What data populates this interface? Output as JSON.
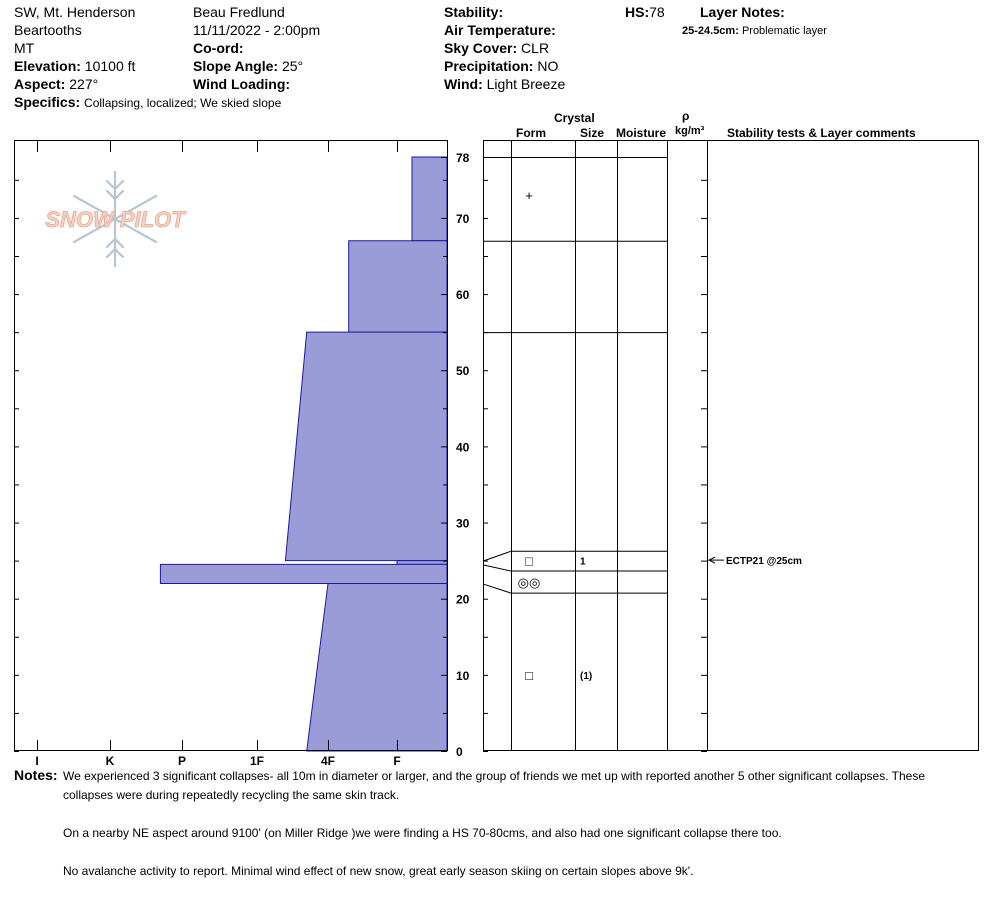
{
  "header": {
    "location": "SW, Mt. Henderson",
    "range": "Beartooths",
    "state": "MT",
    "elevation_label": "Elevation:",
    "elevation_value": "10100 ft",
    "aspect_label": "Aspect:",
    "aspect_value": "227°",
    "specifics_label": "Specifics:",
    "specifics_value": "Collapsing, localized; We skied slope",
    "observer": "Beau  Fredlund",
    "datetime": "11/11/2022 - 2:00pm",
    "coord_label": "Co-ord:",
    "slope_label": "Slope Angle:",
    "slope_value": "25°",
    "wind_loading_label": "Wind Loading:",
    "stability_label": "Stability:",
    "air_temp_label": "Air Temperature:",
    "sky_label": "Sky Cover:",
    "sky_value": "CLR",
    "precip_label": "Precipitation:",
    "precip_value": "NO",
    "wind_label": "Wind:",
    "wind_value": "Light Breeze",
    "hs_label": "HS:",
    "hs_value": "78",
    "layer_notes_label": "Layer Notes:",
    "layer_note_range": "25-24.5cm:",
    "layer_note_text": "Problematic layer"
  },
  "logo": {
    "text": "SNOW PILOT"
  },
  "columns": {
    "crystal": "Crystal",
    "form": "Form",
    "size": "Size",
    "moisture": "Moisture",
    "rho": "ρ",
    "density_unit": "kg/m³",
    "comments": "Stability tests & Layer comments"
  },
  "chart_data": {
    "type": "area",
    "description_axis": "hand hardness vs height",
    "y_range": [
      0,
      80
    ],
    "y_ticks": [
      0,
      10,
      20,
      30,
      40,
      50,
      60,
      70,
      78
    ],
    "hardness_ticks": [
      "I",
      "K",
      "P",
      "1F",
      "4F",
      "F"
    ],
    "layers": [
      {
        "top": 78,
        "bottom": 67,
        "hardness_top": 0.7,
        "hardness_bottom": 0.7
      },
      {
        "top": 67,
        "bottom": 55,
        "hardness_top": 1.7,
        "hardness_bottom": 1.7
      },
      {
        "top": 55,
        "bottom": 25,
        "hardness_top": 2.3,
        "hardness_bottom": 2.6
      },
      {
        "top": 25,
        "bottom": 24.5,
        "hardness_top": 1.0,
        "hardness_bottom": 1.0
      },
      {
        "top": 24.5,
        "bottom": 22,
        "hardness_top": 4.3,
        "hardness_bottom": 4.3
      },
      {
        "top": 22,
        "bottom": 0,
        "hardness_top": 2.0,
        "hardness_bottom": 2.3
      }
    ],
    "grain_rows": [
      {
        "height": 73,
        "form": "+",
        "size": ""
      },
      {
        "height": 25,
        "form": "□",
        "size": "1"
      },
      {
        "height": 22.2,
        "form": "◎◎",
        "size": ""
      },
      {
        "height": 10,
        "form": "□",
        "size": "(1)"
      }
    ],
    "stability_tests": [
      {
        "height": 25,
        "label": "ECTP21 @25cm"
      }
    ]
  },
  "notes": {
    "label": "Notes:",
    "lines": [
      "We experienced 3 significant collapses- all 10m in diameter or larger, and the group of friends we met up with reported another 5 other significant collapses.  These",
      "collapses were during repeatedly recycling the same skin track.",
      "On a nearby NE aspect around 9100' (on Miller Ridge )we were finding a HS 70-80cms, and also had one significant collapse there too.",
      "No avalanche activity to report.  Minimal wind effect of new snow, great early season skiing on certain slopes above 9k'."
    ]
  }
}
